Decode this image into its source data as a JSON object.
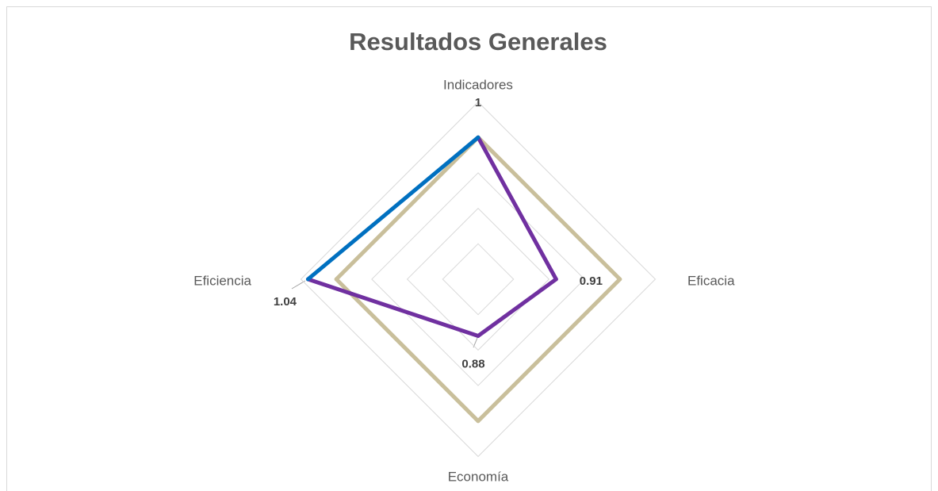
{
  "chart_data": {
    "type": "radar",
    "title": "Resultados Generales",
    "categories": [
      "Indicadores",
      "Eficacia",
      "Economía",
      "Eficiencia"
    ],
    "rlim": [
      0.8,
      1.05
    ],
    "rticks": [
      0.8,
      0.85,
      0.9,
      0.95,
      1.0,
      1.05
    ],
    "grid": true,
    "series": [
      {
        "color": "#c9bf9b",
        "values": [
          1,
          1,
          1,
          1
        ]
      },
      {
        "color": "#7030a0",
        "last_segment_color": "#0070c0",
        "values": [
          1,
          0.91,
          0.88,
          1.04
        ],
        "data_labels": true
      }
    ]
  }
}
